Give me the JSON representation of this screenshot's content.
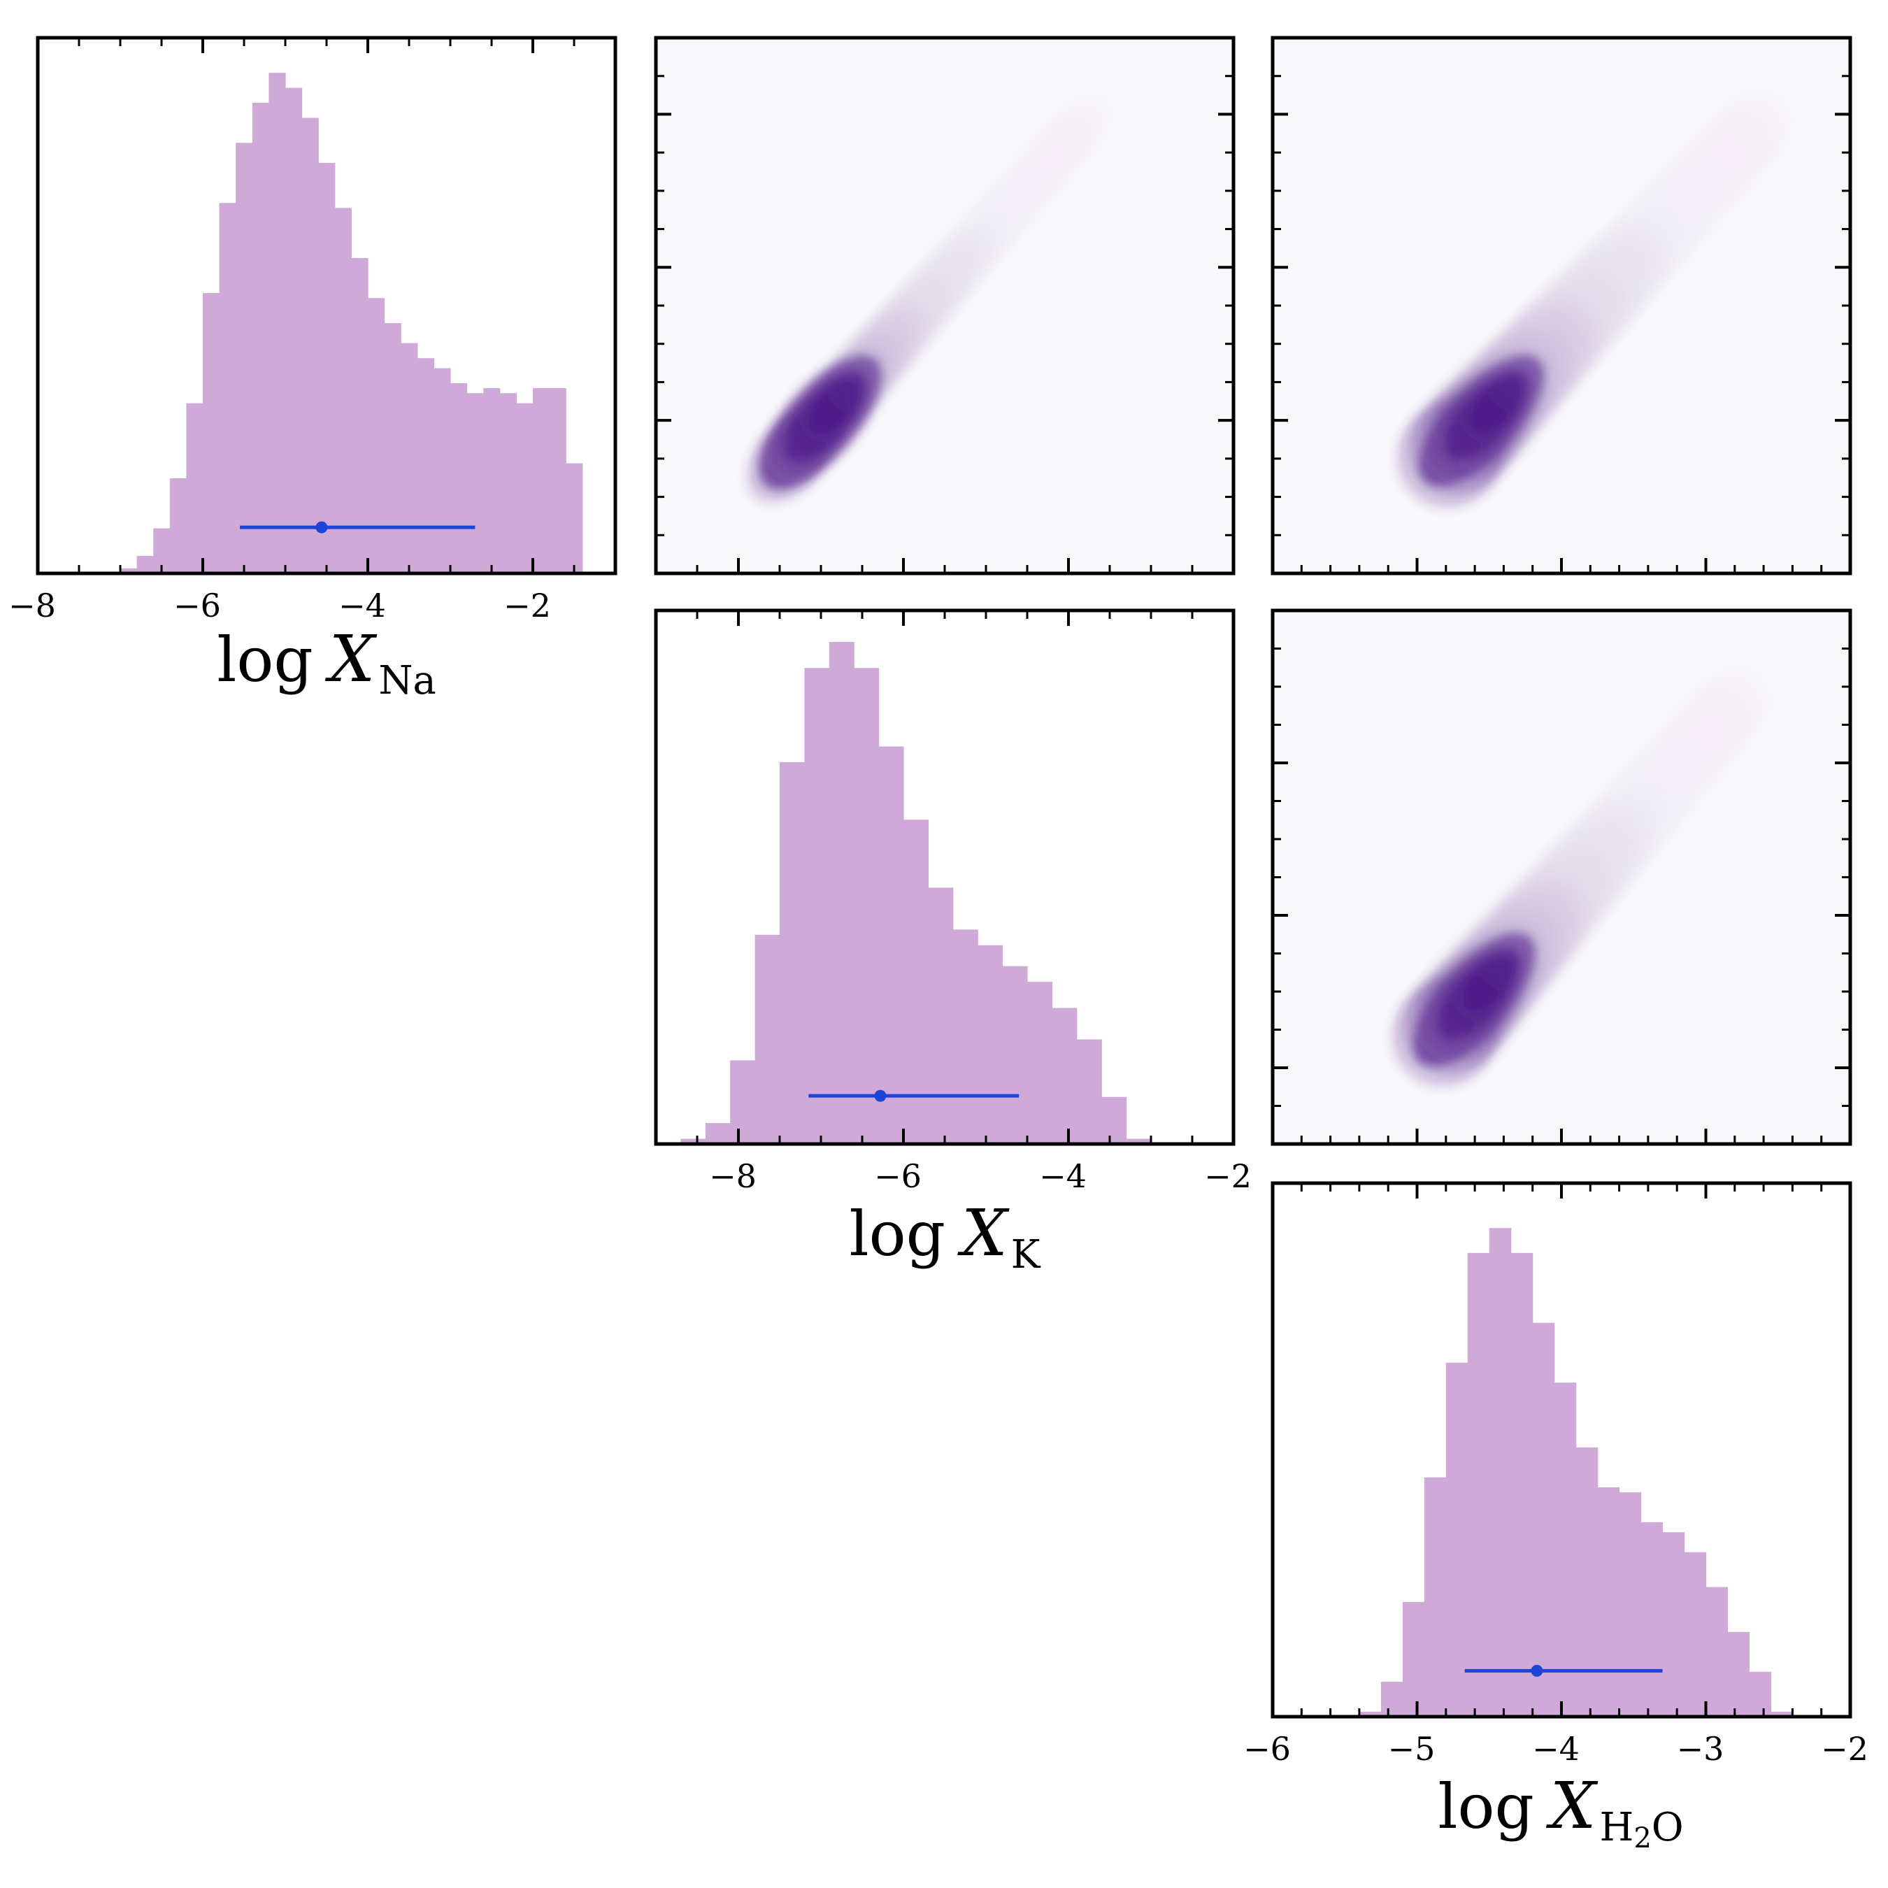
{
  "chart_data": [
    {
      "type": "bar",
      "panel": "histogram",
      "xlabel": {
        "base": "log",
        "var": "X",
        "sub": "Na"
      },
      "xlim": [
        -8,
        -1
      ],
      "xticks": [
        -8,
        -6,
        -4,
        -2
      ],
      "xtick_labels": [
        "−8",
        "−6",
        "−4",
        "−2"
      ],
      "bin_edges": [
        -7.0,
        -6.8,
        -6.6,
        -6.4,
        -6.2,
        -6.0,
        -5.8,
        -5.6,
        -5.4,
        -5.2,
        -5.0,
        -4.8,
        -4.6,
        -4.4,
        -4.2,
        -4.0,
        -3.8,
        -3.6,
        -3.4,
        -3.2,
        -3.0,
        -2.8,
        -2.6,
        -2.4,
        -2.2,
        -2.0,
        -1.8,
        -1.6,
        -1.4
      ],
      "values": [
        0.01,
        0.035,
        0.09,
        0.19,
        0.34,
        0.56,
        0.74,
        0.86,
        0.94,
        1.0,
        0.97,
        0.91,
        0.82,
        0.73,
        0.63,
        0.55,
        0.5,
        0.46,
        0.43,
        0.41,
        0.38,
        0.36,
        0.37,
        0.36,
        0.34,
        0.37,
        0.37,
        0.22
      ],
      "ylim": [
        0,
        1.07
      ],
      "color": "#cfaad8",
      "summary": {
        "median": -4.56,
        "lower": -5.55,
        "upper": -2.7,
        "y": 0.092,
        "color": "#1a45d8"
      }
    },
    {
      "type": "heatmap",
      "panel": "contour",
      "row": 0,
      "col": 1,
      "x_param": "K",
      "y_param": "Na",
      "xlim": [
        -9,
        -2
      ],
      "ylim": [
        -8,
        -1
      ],
      "center": [
        -7.0,
        -6.02
      ],
      "end": [
        -3.85,
        -2.15
      ],
      "spread": [
        0.2,
        0.4
      ],
      "cmap": [
        "#f8f7fa",
        "#4a1486"
      ]
    },
    {
      "type": "heatmap",
      "panel": "contour",
      "row": 0,
      "col": 2,
      "x_param": "H2O",
      "y_param": "Na",
      "xlim": [
        -6,
        -2
      ],
      "ylim": [
        -8,
        -1
      ],
      "center": [
        -4.55,
        -6.0
      ],
      "end": [
        -2.65,
        -2.15
      ],
      "spread": [
        0.2,
        0.4
      ],
      "cmap": [
        "#f8f7fa",
        "#4a1486"
      ]
    },
    {
      "type": "bar",
      "panel": "histogram",
      "xlabel": {
        "base": "log",
        "var": "X",
        "sub": "K"
      },
      "xlim": [
        -9,
        -2
      ],
      "xticks": [
        -8,
        -6,
        -4,
        -2
      ],
      "xtick_labels": [
        "−8",
        "−6",
        "−4",
        "−2"
      ],
      "bin_edges": [
        -8.7,
        -8.4,
        -8.1,
        -7.8,
        -7.5,
        -7.2,
        -6.9,
        -6.6,
        -6.3,
        -6.0,
        -5.7,
        -5.4,
        -5.1,
        -4.8,
        -4.5,
        -4.2,
        -3.9,
        -3.6,
        -3.3,
        -3.0,
        -2.7,
        -2.4
      ],
      "values": [
        0.01,
        0.04,
        0.16,
        0.4,
        0.73,
        0.91,
        0.96,
        0.91,
        0.76,
        0.62,
        0.49,
        0.41,
        0.38,
        0.34,
        0.31,
        0.26,
        0.2,
        0.09,
        0.01,
        0.0,
        0.0
      ],
      "ylim": [
        0,
        1.02
      ],
      "color": "#cfaad8",
      "summary": {
        "median": -6.28,
        "lower": -7.15,
        "upper": -4.6,
        "y": 0.092,
        "color": "#1a45d8"
      }
    },
    {
      "type": "heatmap",
      "panel": "contour",
      "row": 1,
      "col": 2,
      "x_param": "H2O",
      "y_param": "K",
      "xlim": [
        -6,
        -2
      ],
      "ylim": [
        -9,
        -2
      ],
      "center": [
        -4.6,
        -7.1
      ],
      "end": [
        -2.8,
        -3.2
      ],
      "spread": [
        0.2,
        0.42
      ],
      "cmap": [
        "#f8f7fa",
        "#4a1486"
      ]
    },
    {
      "type": "bar",
      "panel": "histogram",
      "xlabel": {
        "base": "log",
        "var": "X",
        "sub": "H2O"
      },
      "xlim": [
        -6,
        -2
      ],
      "xticks": [
        -6,
        -5,
        -4,
        -3,
        -2
      ],
      "xtick_labels": [
        "−6",
        "−5",
        "−4",
        "−3",
        "−2"
      ],
      "bin_edges": [
        -5.4,
        -5.25,
        -5.1,
        -4.95,
        -4.8,
        -4.65,
        -4.5,
        -4.35,
        -4.2,
        -4.05,
        -3.9,
        -3.75,
        -3.6,
        -3.45,
        -3.3,
        -3.15,
        -3.0,
        -2.85,
        -2.7,
        -2.55,
        -2.4,
        -2.25
      ],
      "values": [
        0.01,
        0.07,
        0.23,
        0.48,
        0.71,
        0.93,
        0.98,
        0.93,
        0.79,
        0.67,
        0.54,
        0.46,
        0.45,
        0.39,
        0.37,
        0.33,
        0.26,
        0.17,
        0.09,
        0.01,
        0.0
      ],
      "ylim": [
        0,
        1.07
      ],
      "color": "#cfaad8",
      "summary": {
        "median": -4.17,
        "lower": -4.67,
        "upper": -3.3,
        "y": 0.092,
        "color": "#1a45d8"
      }
    }
  ]
}
